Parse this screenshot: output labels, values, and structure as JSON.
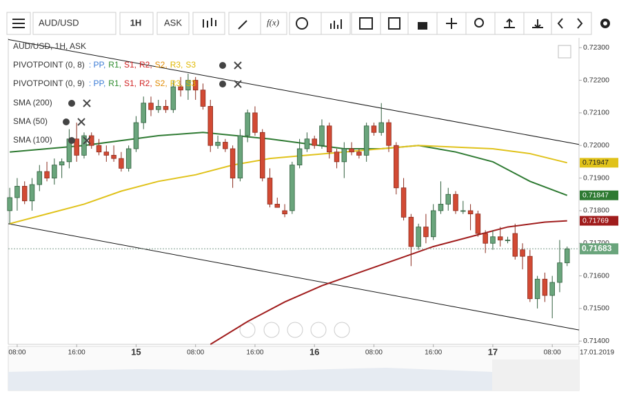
{
  "toolbar": {
    "symbol": "AUD/USD",
    "timeframe": "1H",
    "side": "ASK",
    "function_button": "f(x)"
  },
  "chart_data": {
    "type": "candlestick",
    "legend": {
      "title": "AUD/USD, 1H, ASK",
      "pivots": [
        {
          "name": "PIVOTPOINT (0, 8)"
        },
        {
          "name": "PIVOTPOINT (0, 9)"
        }
      ],
      "pivot_parts": [
        {
          "text": ": PP,",
          "color": "#3a7bd5"
        },
        {
          "text": "R1,",
          "color": "#2e8b2e"
        },
        {
          "text": "S1,",
          "color": "#d02020"
        },
        {
          "text": "R2,",
          "color": "#d02020"
        },
        {
          "text": "S2,",
          "color": "#e08a00"
        },
        {
          "text": "R3,",
          "color": "#e0b800"
        },
        {
          "text": "S3",
          "color": "#e0b800"
        }
      ]
    },
    "x": [
      0,
      1,
      2,
      3,
      4,
      5,
      6,
      7,
      8,
      9,
      10,
      11,
      12,
      13,
      14,
      15,
      16,
      17,
      18,
      19,
      20,
      21,
      22,
      23,
      24,
      25,
      26,
      27,
      28,
      29,
      30,
      31,
      32,
      33,
      34,
      35,
      36,
      37,
      38,
      39,
      40,
      41,
      42,
      43,
      44,
      45,
      46,
      47,
      48,
      49,
      50,
      51,
      52,
      53,
      54,
      55,
      56,
      57,
      58,
      59,
      60,
      61,
      62,
      63,
      64,
      65,
      66,
      67,
      68,
      69,
      70,
      71,
      72,
      73,
      74,
      75
    ],
    "open": [
      0.718,
      0.7184,
      0.71875,
      0.7183,
      0.7188,
      0.7192,
      0.719,
      0.7194,
      0.7195,
      0.7202,
      0.7197,
      0.7203,
      0.72,
      0.7198,
      0.7197,
      0.7196,
      0.7193,
      0.7199,
      0.7207,
      0.7213,
      0.7211,
      0.7212,
      0.7211,
      0.7218,
      0.7217,
      0.722,
      0.7217,
      0.7212,
      0.72,
      0.7201,
      0.7199,
      0.719,
      0.7203,
      0.721,
      0.7204,
      0.719,
      0.7182,
      0.718,
      0.718,
      0.7194,
      0.7199,
      0.7202,
      0.72,
      0.7206,
      0.7198,
      0.7195,
      0.7199,
      0.7198,
      0.7197,
      0.7206,
      0.7204,
      0.7207,
      0.72,
      0.7187,
      0.7178,
      0.7169,
      0.7175,
      0.7172,
      0.718,
      0.7182,
      0.7185,
      0.718,
      0.718,
      0.7179,
      0.7173,
      0.717,
      0.7172,
      0.7171,
      0.7173,
      0.7168,
      0.7166,
      0.7153,
      0.7159,
      0.7154,
      0.7158,
      0.7164
    ],
    "high": [
      0.7187,
      0.719,
      0.7189,
      0.719,
      0.7194,
      0.7195,
      0.7196,
      0.7196,
      0.7205,
      0.7207,
      0.7204,
      0.7204,
      0.7202,
      0.72,
      0.72,
      0.7198,
      0.72,
      0.7209,
      0.7215,
      0.7215,
      0.7214,
      0.7214,
      0.722,
      0.7221,
      0.7222,
      0.7221,
      0.7219,
      0.7214,
      0.7203,
      0.7202,
      0.72,
      0.7205,
      0.7211,
      0.7212,
      0.7205,
      0.7193,
      0.7184,
      0.7182,
      0.7195,
      0.7202,
      0.7204,
      0.7203,
      0.7208,
      0.7207,
      0.7199,
      0.7201,
      0.7201,
      0.7199,
      0.7207,
      0.7207,
      0.7213,
      0.7208,
      0.7201,
      0.719,
      0.7179,
      0.7176,
      0.7179,
      0.7182,
      0.7189,
      0.7187,
      0.7186,
      0.7183,
      0.7182,
      0.718,
      0.7174,
      0.7174,
      0.7175,
      0.7172,
      0.7176,
      0.717,
      0.7168,
      0.716,
      0.7161,
      0.716,
      0.7171,
      0.7169
    ],
    "low": [
      0.7176,
      0.718,
      0.7182,
      0.718,
      0.7186,
      0.7189,
      0.7188,
      0.719,
      0.7193,
      0.7195,
      0.7196,
      0.7199,
      0.7197,
      0.7195,
      0.7195,
      0.7192,
      0.7192,
      0.7198,
      0.7205,
      0.7209,
      0.721,
      0.721,
      0.721,
      0.7215,
      0.7214,
      0.7214,
      0.7211,
      0.7198,
      0.7199,
      0.7198,
      0.7187,
      0.7189,
      0.7201,
      0.7203,
      0.7189,
      0.7181,
      0.7181,
      0.7178,
      0.7179,
      0.7193,
      0.7198,
      0.7199,
      0.7199,
      0.7196,
      0.7193,
      0.719,
      0.7197,
      0.7196,
      0.7195,
      0.7203,
      0.7203,
      0.7198,
      0.7185,
      0.7177,
      0.7163,
      0.7168,
      0.717,
      0.7171,
      0.7179,
      0.718,
      0.7179,
      0.7179,
      0.7174,
      0.7172,
      0.7167,
      0.7168,
      0.7169,
      0.717,
      0.7165,
      0.7162,
      0.7152,
      0.715,
      0.7152,
      0.7147,
      0.7155,
      0.7163
    ],
    "close": [
      0.7184,
      0.71875,
      0.7183,
      0.7188,
      0.7192,
      0.719,
      0.7194,
      0.7195,
      0.7202,
      0.7197,
      0.7203,
      0.72,
      0.7198,
      0.7197,
      0.7196,
      0.7193,
      0.7199,
      0.7207,
      0.7213,
      0.7211,
      0.7212,
      0.7211,
      0.7218,
      0.7217,
      0.722,
      0.7217,
      0.7212,
      0.72,
      0.7201,
      0.7199,
      0.719,
      0.7203,
      0.721,
      0.7204,
      0.719,
      0.7182,
      0.7181,
      0.7179,
      0.7194,
      0.7199,
      0.7202,
      0.72,
      0.7206,
      0.7198,
      0.7195,
      0.7199,
      0.7198,
      0.7197,
      0.7206,
      0.7204,
      0.7207,
      0.72,
      0.7187,
      0.7178,
      0.7169,
      0.7175,
      0.7172,
      0.718,
      0.7182,
      0.7185,
      0.718,
      0.718,
      0.7179,
      0.7173,
      0.717,
      0.7172,
      0.7171,
      0.7171,
      0.7166,
      0.7166,
      0.7153,
      0.7159,
      0.7154,
      0.7158,
      0.7164,
      0.71683
    ],
    "up_color": "#6aa57c",
    "down_color": "#d24a34",
    "overlays": [
      {
        "name": "SMA (200)",
        "color": "#a01c1c",
        "x": [
          27,
          32,
          37,
          42,
          47,
          52,
          57,
          62,
          67,
          72,
          75
        ],
        "values": [
          0.7139,
          0.7146,
          0.7152,
          0.7157,
          0.7161,
          0.7165,
          0.7169,
          0.7172,
          0.7175,
          0.71765,
          0.71769
        ],
        "value_label": "0.71769"
      },
      {
        "name": "SMA (50)",
        "color": "#2e7a32",
        "x": [
          0,
          10,
          20,
          26,
          35,
          45,
          50,
          55,
          60,
          65,
          70,
          75
        ],
        "values": [
          0.7198,
          0.72,
          0.7203,
          0.7204,
          0.7202,
          0.7199,
          0.7199,
          0.72,
          0.7198,
          0.7195,
          0.7189,
          0.71847
        ],
        "value_label": "0.71847"
      },
      {
        "name": "SMA (100)",
        "color": "#e0c21a",
        "x": [
          0,
          5,
          10,
          15,
          20,
          25,
          30,
          35,
          40,
          45,
          50,
          55,
          60,
          65,
          70,
          75
        ],
        "values": [
          0.7176,
          0.7179,
          0.7182,
          0.7186,
          0.7189,
          0.7191,
          0.7194,
          0.7196,
          0.7197,
          0.7198,
          0.7199,
          0.72,
          0.71995,
          0.7199,
          0.71975,
          0.71947
        ],
        "value_label": "0.71947"
      }
    ],
    "trendlines": [
      {
        "x": [
          -0.2,
          76.6
        ],
        "values": [
          0.72325,
          0.72003
        ]
      },
      {
        "x": [
          -0.2,
          76.6
        ],
        "values": [
          0.7176,
          0.71434
        ]
      }
    ],
    "last_price": 0.71683,
    "last_price_label": "0.71683",
    "xlim": [
      -0.2,
      76.6
    ],
    "xticks": [
      {
        "value": 1,
        "label": "08:00"
      },
      {
        "value": 9,
        "label": "16:00"
      },
      {
        "value": 17,
        "label": "15"
      },
      {
        "value": 25,
        "label": "08:00"
      },
      {
        "value": 33,
        "label": "16:00"
      },
      {
        "value": 41,
        "label": "16"
      },
      {
        "value": 49,
        "label": "08:00"
      },
      {
        "value": 57,
        "label": "16:00"
      },
      {
        "value": 65,
        "label": "17"
      },
      {
        "value": 73,
        "label": "08:00"
      }
    ],
    "date_label": "17.01.2019",
    "ylim": [
      0.7139,
      0.7233
    ],
    "yticks": [
      {
        "value": 0.723,
        "label": "0.72300"
      },
      {
        "value": 0.722,
        "label": "0.72200"
      },
      {
        "value": 0.721,
        "label": "0.72100"
      },
      {
        "value": 0.72,
        "label": "0.72000"
      },
      {
        "value": 0.719,
        "label": "0.71900"
      },
      {
        "value": 0.718,
        "label": "0.71800"
      },
      {
        "value": 0.717,
        "label": "0.71700"
      },
      {
        "value": 0.716,
        "label": "0.71600"
      },
      {
        "value": 0.715,
        "label": "0.71500"
      },
      {
        "value": 0.714,
        "label": "0.71400"
      }
    ]
  }
}
